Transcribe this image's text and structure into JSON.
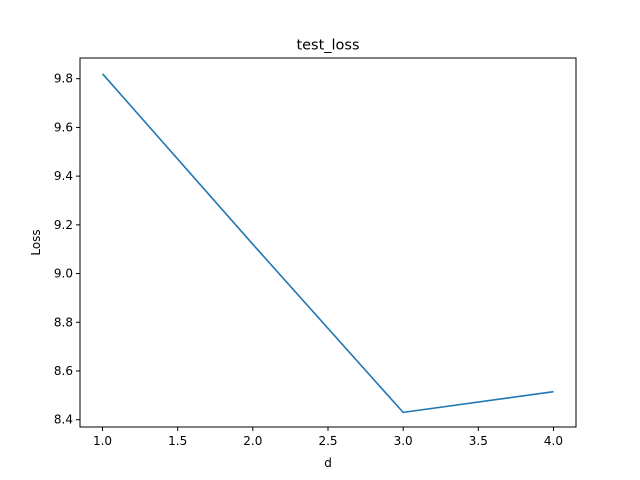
{
  "chart_data": {
    "type": "line",
    "title": "test_loss",
    "xlabel": "d",
    "ylabel": "Loss",
    "xlim": [
      0.85,
      4.15
    ],
    "ylim": [
      8.37,
      9.885
    ],
    "xticks": [
      1.0,
      1.5,
      2.0,
      2.5,
      3.0,
      3.5,
      4.0
    ],
    "xtick_labels": [
      "1.0",
      "1.5",
      "2.0",
      "2.5",
      "3.0",
      "3.5",
      "4.0"
    ],
    "yticks": [
      8.4,
      8.6,
      8.8,
      9.0,
      9.2,
      9.4,
      9.6,
      9.8
    ],
    "ytick_labels": [
      "8.4",
      "8.6",
      "8.8",
      "9.0",
      "9.2",
      "9.4",
      "9.6",
      "9.8"
    ],
    "grid": false,
    "series": [
      {
        "x": [
          1.0,
          2.0,
          3.0,
          4.0
        ],
        "values": [
          9.82,
          9.12,
          8.43,
          8.515
        ],
        "color": "#1f77b4"
      }
    ]
  }
}
